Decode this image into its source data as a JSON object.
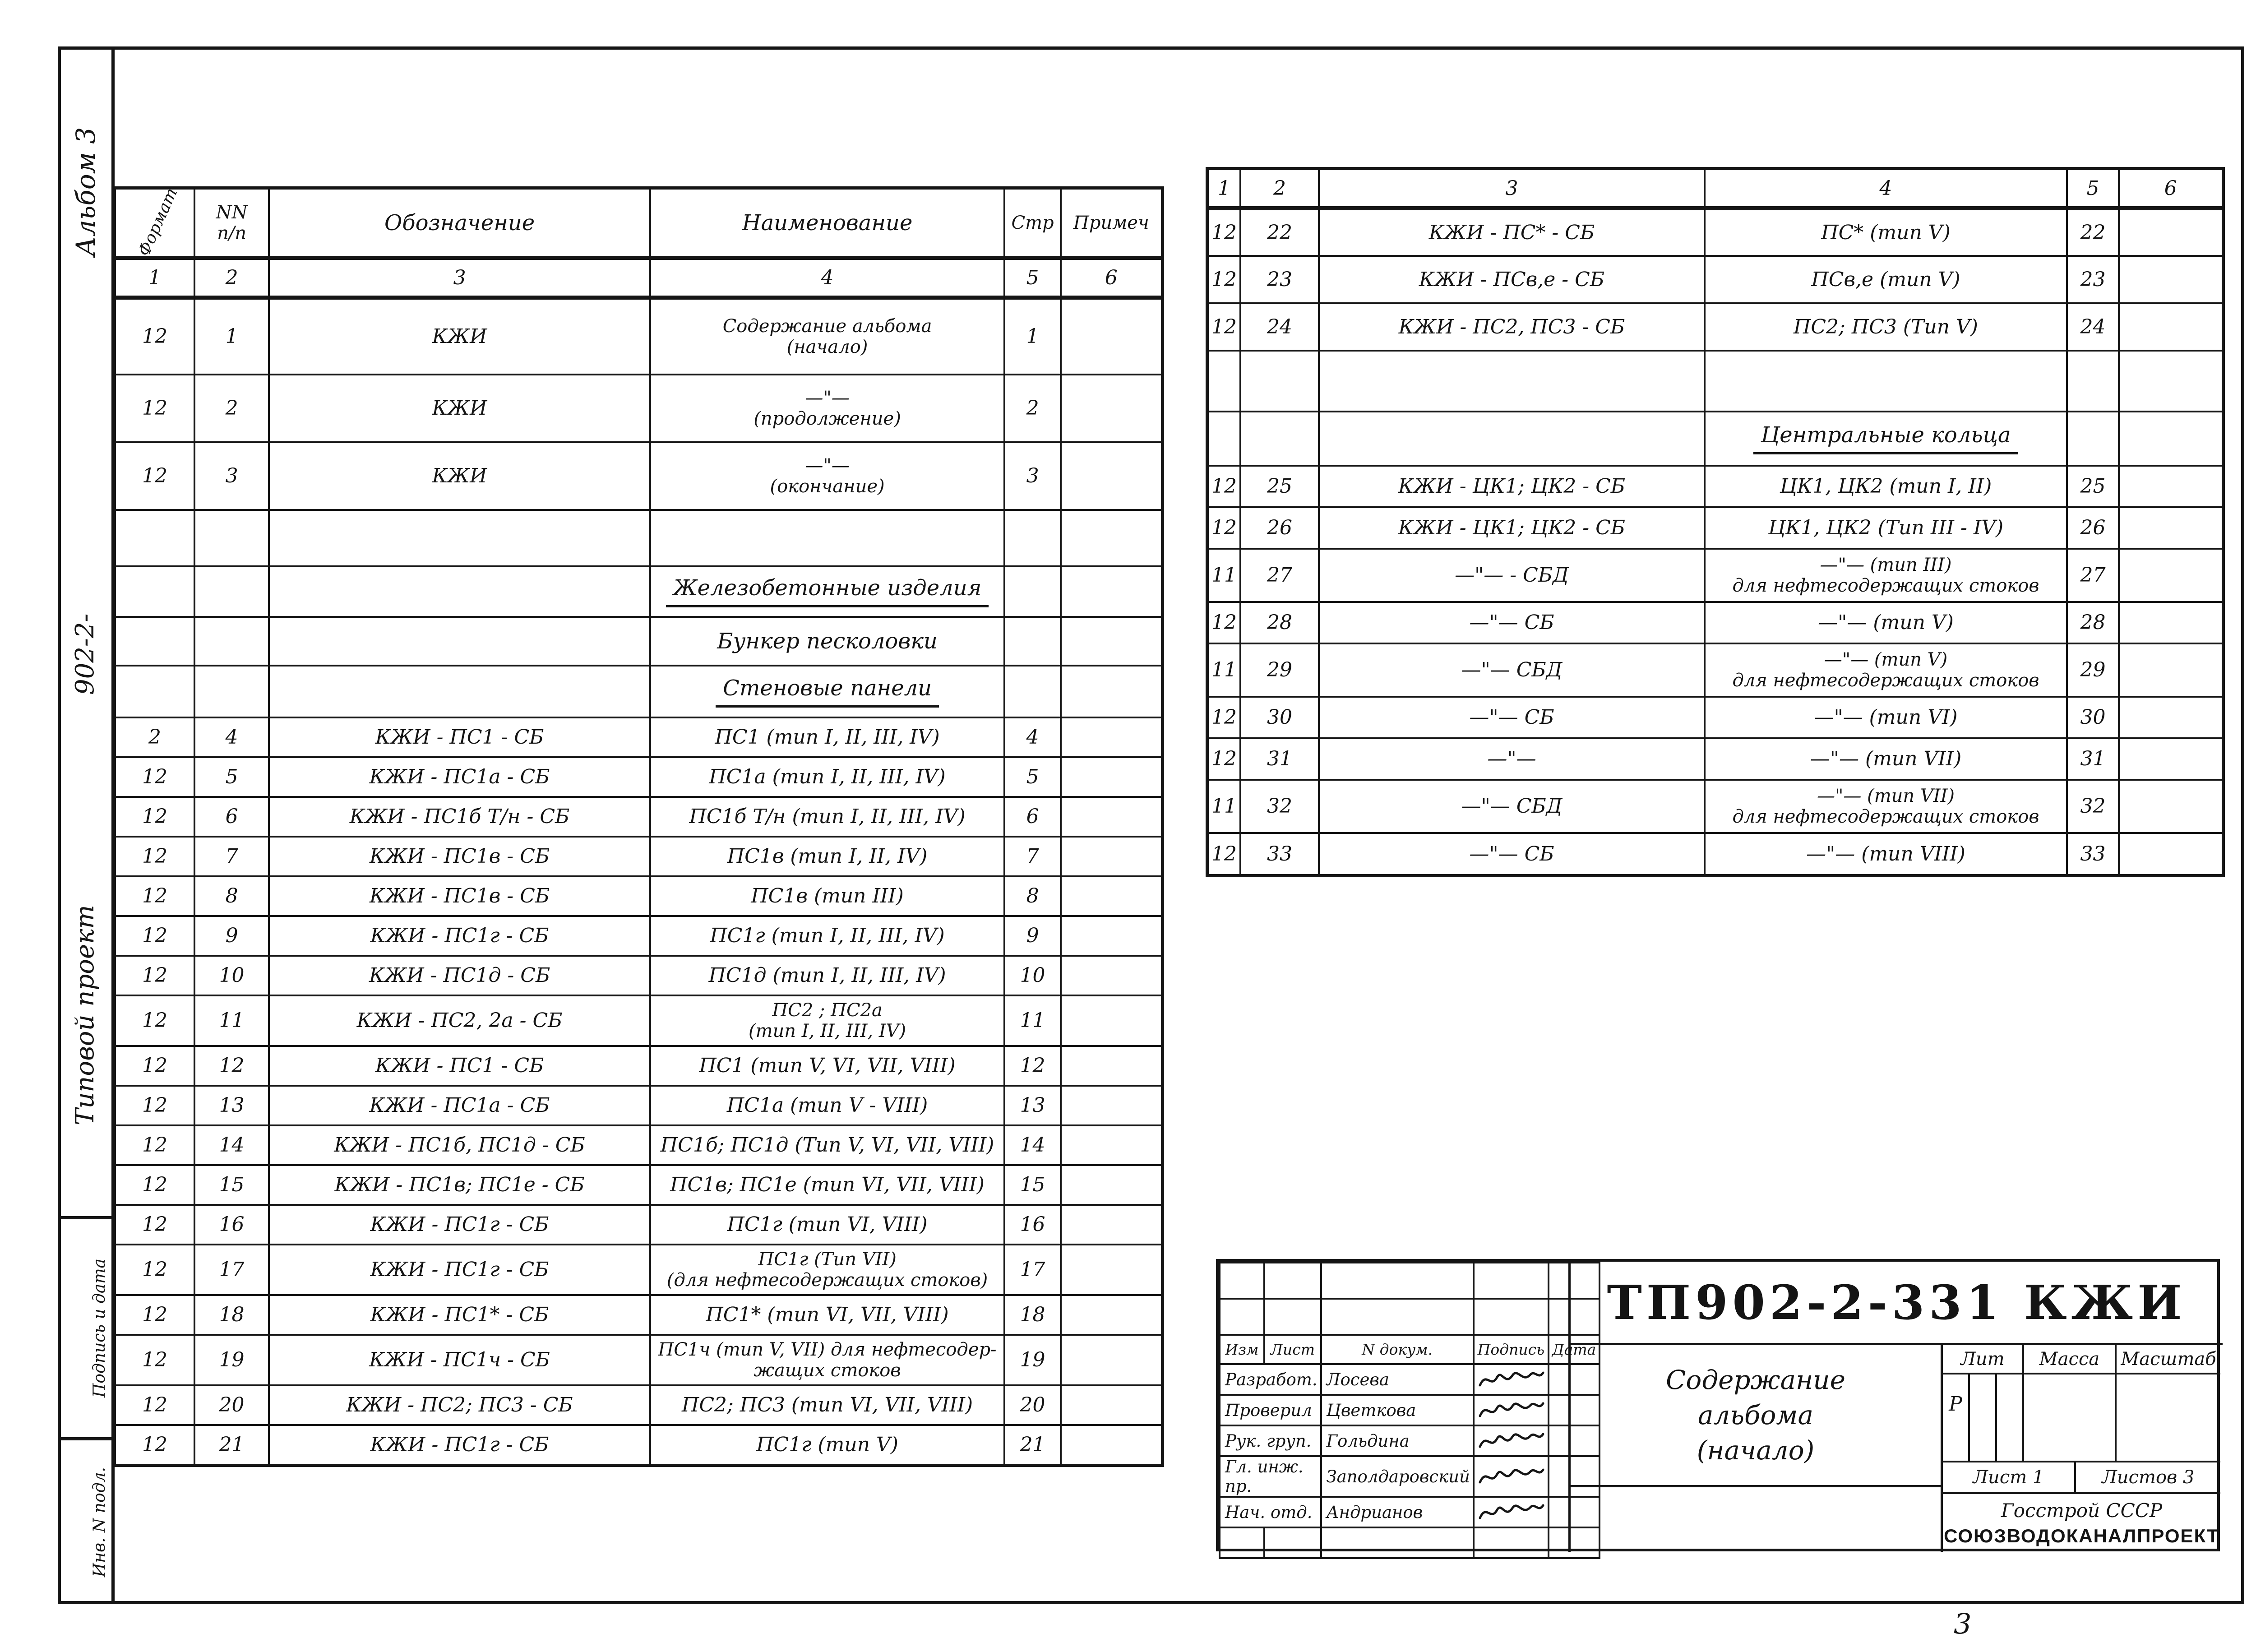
{
  "sidebar": {
    "album": "Альбом 3",
    "project_name": "Типовой проект",
    "project_number": "902-2-",
    "box_sign": "Подпись и дата",
    "box_inv": "Инв. N подл."
  },
  "left_table": {
    "headers": {
      "format": "Формат",
      "nn1": "NN",
      "nn2": "п/п",
      "designation": "Обозначение",
      "name": "Наименование",
      "page": "Стр",
      "note": "Примеч"
    },
    "colnums": [
      "1",
      "2",
      "3",
      "4",
      "5",
      "6"
    ],
    "rows": [
      {
        "t": "d",
        "h": 170,
        "f": "12",
        "n": "1",
        "d": "КЖИ",
        "nm": [
          "Содержание альбома",
          "(начало)"
        ],
        "p": "1"
      },
      {
        "t": "d",
        "h": 150,
        "f": "12",
        "n": "2",
        "d": "КЖИ",
        "nm": [
          "—\"—",
          "(продолжение)"
        ],
        "p": "2"
      },
      {
        "t": "d",
        "h": 150,
        "f": "12",
        "n": "3",
        "d": "КЖИ",
        "nm": [
          "—\"—",
          "(окончание)"
        ],
        "p": "3"
      },
      {
        "t": "e",
        "h": 125
      },
      {
        "t": "s",
        "h": 112,
        "x": "Железобетонные изделия",
        "u": true
      },
      {
        "t": "s",
        "h": 108,
        "x": "Бункер песколовки",
        "u": false
      },
      {
        "t": "s",
        "h": 115,
        "x": "Стеновые панели",
        "u": true
      },
      {
        "t": "d",
        "h": 88,
        "f": "2",
        "n": "4",
        "d": "КЖИ - ПС1 - СБ",
        "nm": [
          "ПС1 (тип I, II, III, IV)"
        ],
        "p": "4"
      },
      {
        "t": "d",
        "h": 88,
        "f": "12",
        "n": "5",
        "d": "КЖИ - ПС1а - СБ",
        "nm": [
          "ПС1а (тип I, II, III, IV)"
        ],
        "p": "5"
      },
      {
        "t": "d",
        "h": 88,
        "f": "12",
        "n": "6",
        "d": "КЖИ - ПС1б Т/н - СБ",
        "nm": [
          "ПС1б Т/н (тип I, II, III, IV)"
        ],
        "p": "6"
      },
      {
        "t": "d",
        "h": 88,
        "f": "12",
        "n": "7",
        "d": "КЖИ - ПС1в - СБ",
        "nm": [
          "ПС1в (тип I, II, IV)"
        ],
        "p": "7"
      },
      {
        "t": "d",
        "h": 88,
        "f": "12",
        "n": "8",
        "d": "КЖИ - ПС1в - СБ",
        "nm": [
          "ПС1в (тип III)"
        ],
        "p": "8"
      },
      {
        "t": "d",
        "h": 88,
        "f": "12",
        "n": "9",
        "d": "КЖИ - ПС1г - СБ",
        "nm": [
          "ПС1г (тип I, II, III, IV)"
        ],
        "p": "9"
      },
      {
        "t": "d",
        "h": 88,
        "f": "12",
        "n": "10",
        "d": "КЖИ - ПС1д - СБ",
        "nm": [
          "ПС1д (тип I, II, III, IV)"
        ],
        "p": "10"
      },
      {
        "t": "d",
        "h": 112,
        "f": "12",
        "n": "11",
        "d": "КЖИ - ПС2, 2а - СБ",
        "nm": [
          "ПС2 ;  ПС2а",
          "(тип I, II, III, IV)"
        ],
        "p": "11"
      },
      {
        "t": "d",
        "h": 88,
        "f": "12",
        "n": "12",
        "d": "КЖИ - ПС1 - СБ",
        "nm": [
          "ПС1 (тип V, VI, VII, VIII)"
        ],
        "p": "12"
      },
      {
        "t": "d",
        "h": 88,
        "f": "12",
        "n": "13",
        "d": "КЖИ - ПС1а - СБ",
        "nm": [
          "ПС1а (тип V - VIII)"
        ],
        "p": "13"
      },
      {
        "t": "d",
        "h": 88,
        "f": "12",
        "n": "14",
        "d": "КЖИ - ПС1б, ПС1д - СБ",
        "nm": [
          "ПС1б;  ПС1д (Тип V, VI, VII, VIII)"
        ],
        "p": "14"
      },
      {
        "t": "d",
        "h": 88,
        "f": "12",
        "n": "15",
        "d": "КЖИ - ПС1в; ПС1е - СБ",
        "nm": [
          "ПС1в; ПС1е (тип VI, VII, VIII)"
        ],
        "p": "15"
      },
      {
        "t": "d",
        "h": 88,
        "f": "12",
        "n": "16",
        "d": "КЖИ - ПС1г - СБ",
        "nm": [
          "ПС1г (тип VI, VIII)"
        ],
        "p": "16"
      },
      {
        "t": "d",
        "h": 112,
        "f": "12",
        "n": "17",
        "d": "КЖИ - ПС1г - СБ",
        "nm": [
          "ПС1г (Тип VII)",
          "(для нефтесодержащих стоков)"
        ],
        "p": "17"
      },
      {
        "t": "d",
        "h": 88,
        "f": "12",
        "n": "18",
        "d": "КЖИ - ПС1* - СБ",
        "nm": [
          "ПС1* (тип VI, VII, VIII)"
        ],
        "p": "18"
      },
      {
        "t": "d",
        "h": 112,
        "f": "12",
        "n": "19",
        "d": "КЖИ - ПС1ч - СБ",
        "nm": [
          "ПС1ч (тип V, VII) для нефтесодер-",
          "жащих стоков"
        ],
        "p": "19"
      },
      {
        "t": "d",
        "h": 88,
        "f": "12",
        "n": "20",
        "d": "КЖИ - ПС2; ПС3 - СБ",
        "nm": [
          "ПС2;  ПС3 (тип VI, VII, VIII)"
        ],
        "p": "20"
      },
      {
        "t": "d",
        "h": 90,
        "f": "12",
        "n": "21",
        "d": "КЖИ - ПС1г - СБ",
        "nm": [
          "ПС1г (тип V)"
        ],
        "p": "21"
      }
    ]
  },
  "right_table": {
    "colnums": [
      "1",
      "2",
      "3",
      "4",
      "5",
      "6"
    ],
    "rows": [
      {
        "t": "d",
        "h": 105,
        "f": "12",
        "n": "22",
        "d": "КЖИ - ПС* - СБ",
        "nm": [
          "ПС* (тип V)"
        ],
        "p": "22"
      },
      {
        "t": "d",
        "h": 105,
        "f": "12",
        "n": "23",
        "d": "КЖИ - ПСв,е - СБ",
        "nm": [
          "ПСв,е (тип V)"
        ],
        "p": "23"
      },
      {
        "t": "d",
        "h": 105,
        "f": "12",
        "n": "24",
        "d": "КЖИ - ПС2, ПС3 - СБ",
        "nm": [
          "ПС2; ПС3 (Тип V)"
        ],
        "p": "24"
      },
      {
        "t": "e",
        "h": 135
      },
      {
        "t": "s",
        "h": 120,
        "x": "Центральные кольца",
        "u": true
      },
      {
        "t": "d",
        "h": 92,
        "f": "12",
        "n": "25",
        "d": "КЖИ - ЦК1; ЦК2 - СБ",
        "nm": [
          "ЦК1, ЦК2 (тип I, II)"
        ],
        "p": "25"
      },
      {
        "t": "d",
        "h": 92,
        "f": "12",
        "n": "26",
        "d": "КЖИ - ЦК1; ЦК2 - СБ",
        "nm": [
          "ЦК1, ЦК2 (Тип III - IV)"
        ],
        "p": "26"
      },
      {
        "t": "d",
        "h": 118,
        "f": "11",
        "n": "27",
        "d": "—\"— - СБД",
        "nm": [
          "—\"—  (тип III)",
          "для нефтесодержащих стоков"
        ],
        "p": "27"
      },
      {
        "t": "d",
        "h": 92,
        "f": "12",
        "n": "28",
        "d": "—\"—  СБ",
        "nm": [
          "—\"—  (тип V)"
        ],
        "p": "28"
      },
      {
        "t": "d",
        "h": 118,
        "f": "11",
        "n": "29",
        "d": "—\"—  СБД",
        "nm": [
          "—\"—  (тип V)",
          "для нефтесодержащих стоков"
        ],
        "p": "29"
      },
      {
        "t": "d",
        "h": 92,
        "f": "12",
        "n": "30",
        "d": "—\"—  СБ",
        "nm": [
          "—\"—  (тип VI)"
        ],
        "p": "30"
      },
      {
        "t": "d",
        "h": 92,
        "f": "12",
        "n": "31",
        "d": "—\"—",
        "nm": [
          "—\"—  (тип VII)"
        ],
        "p": "31"
      },
      {
        "t": "d",
        "h": 118,
        "f": "11",
        "n": "32",
        "d": "—\"—  СБД",
        "nm": [
          "—\"—  (тип VII)",
          "для нефтесодержащих стоков"
        ],
        "p": "32"
      },
      {
        "t": "d",
        "h": 95,
        "f": "12",
        "n": "33",
        "d": "—\"—  СБ",
        "nm": [
          "—\"—  (тип VIII)"
        ],
        "p": "33"
      }
    ]
  },
  "titleblock": {
    "doc_number": "ТП902-2-331 КЖИ",
    "subject_lines": [
      "Содержание",
      "альбома",
      "(начало)"
    ],
    "small_headers": [
      "Изм",
      "Лист",
      "N докум.",
      "Подпись",
      "Дата"
    ],
    "sign_rows": [
      {
        "role": "Разработ.",
        "name": "Лосева"
      },
      {
        "role": "Проверил",
        "name": "Цветкова"
      },
      {
        "role": "Рук. груп.",
        "name": "Гольдина"
      },
      {
        "role": "Гл. инж. пр.",
        "name": "Заполдаровский"
      },
      {
        "role": "Нач. отд.",
        "name": "Андрианов"
      }
    ],
    "lit_label": "Лит",
    "mass_label": "Масса",
    "scale_label": "Масштаб",
    "lit_value": "Р",
    "sheet_label": "Лист 1",
    "sheets_label": "Листов 3",
    "org_line1": "Госстрой СССР",
    "org_line2": "СОЮЗВОДОКАНАЛПРОЕКТ"
  },
  "page_number": "3"
}
